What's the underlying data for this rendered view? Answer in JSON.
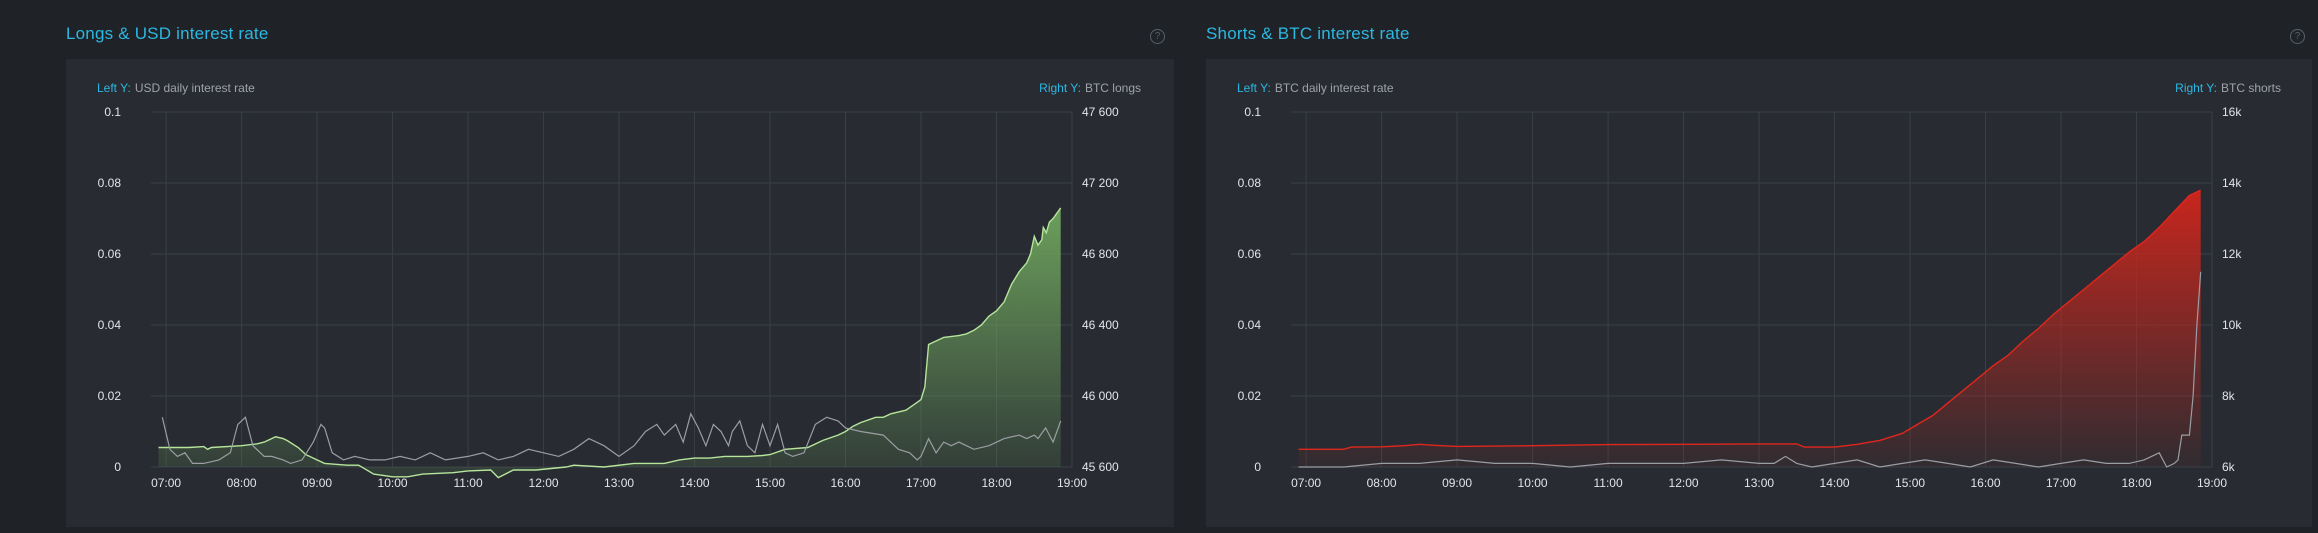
{
  "panels": {
    "longs": {
      "title": "Longs & USD interest rate",
      "help": "?"
    },
    "shorts": {
      "title": "Shorts & BTC interest rate",
      "help": "?"
    }
  },
  "colors": {
    "background": "#1f2328",
    "card": "#282c32",
    "accent": "#2db7e1",
    "longs_line": "#b6e59b",
    "longs_fill_top": "#6fa55e",
    "shorts_line": "#e0261c",
    "shorts_fill_top": "#c8261d",
    "rate_line": "#9a9ea4"
  },
  "chart_data": [
    {
      "type": "area",
      "title": "Longs & USD interest rate",
      "left_axis_caption": {
        "prefix": "Left Y:",
        "text": "USD daily interest rate"
      },
      "right_axis_caption": {
        "prefix": "Right Y:",
        "text": "BTC longs"
      },
      "xlim": [
        6.8,
        19.0
      ],
      "x_ticks": [
        7,
        8,
        9,
        10,
        11,
        12,
        13,
        14,
        15,
        16,
        17,
        18,
        19
      ],
      "x_tick_labels": [
        "07:00",
        "08:00",
        "09:00",
        "10:00",
        "11:00",
        "12:00",
        "13:00",
        "14:00",
        "15:00",
        "16:00",
        "17:00",
        "18:00",
        "19:00"
      ],
      "ylim_left": [
        0,
        0.1
      ],
      "left_ticks": [
        0,
        0.02,
        0.04,
        0.06,
        0.08,
        0.1
      ],
      "left_tick_labels": [
        "0",
        "0.02",
        "0.04",
        "0.06",
        "0.08",
        "0.1"
      ],
      "ylim_right": [
        45600,
        47600
      ],
      "right_ticks": [
        45600,
        46000,
        46400,
        46800,
        47200,
        47600
      ],
      "right_tick_labels": [
        "45 600",
        "46 000",
        "46 400",
        "46 800",
        "47 200",
        "47 600"
      ],
      "grid": true,
      "series": [
        {
          "name": "BTC longs",
          "axis": "right",
          "style": "area",
          "x": [
            6.9,
            7.3,
            7.5,
            7.55,
            7.6,
            8.0,
            8.2,
            8.3,
            8.45,
            8.55,
            8.6,
            8.75,
            8.85,
            8.95,
            9.1,
            9.4,
            9.55,
            9.75,
            10.0,
            10.2,
            10.4,
            10.8,
            11.0,
            11.3,
            11.4,
            11.6,
            11.9,
            12.3,
            12.4,
            12.8,
            13.2,
            13.4,
            13.6,
            13.8,
            14.0,
            14.2,
            14.4,
            14.7,
            14.9,
            15.0,
            15.2,
            15.5,
            15.7,
            15.9,
            16.0,
            16.1,
            16.2,
            16.4,
            16.5,
            16.6,
            16.8,
            16.9,
            17.0,
            17.05,
            17.1,
            17.3,
            17.5,
            17.6,
            17.7,
            17.8,
            17.9,
            18.0,
            18.1,
            18.15,
            18.2,
            18.3,
            18.4,
            18.45,
            18.5,
            18.55,
            18.6,
            18.62,
            18.66,
            18.7,
            18.75,
            18.8,
            18.85
          ],
          "values": [
            45710,
            45710,
            45715,
            45700,
            45710,
            45720,
            45730,
            45740,
            45770,
            45760,
            45750,
            45710,
            45670,
            45650,
            45620,
            45610,
            45610,
            45560,
            45545,
            45545,
            45560,
            45568,
            45578,
            45583,
            45540,
            45583,
            45583,
            45600,
            45610,
            45600,
            45620,
            45620,
            45620,
            45640,
            45650,
            45650,
            45660,
            45660,
            45665,
            45670,
            45700,
            45710,
            45750,
            45780,
            45800,
            45830,
            45850,
            45880,
            45880,
            45900,
            45920,
            45950,
            45980,
            46050,
            46290,
            46330,
            46340,
            46350,
            46370,
            46400,
            46450,
            46480,
            46530,
            46580,
            46630,
            46700,
            46750,
            46800,
            46900,
            46850,
            46880,
            46950,
            46920,
            46980,
            47000,
            47030,
            47060
          ]
        },
        {
          "name": "USD daily interest rate",
          "axis": "left",
          "style": "line",
          "x": [
            6.95,
            7.05,
            7.15,
            7.25,
            7.35,
            7.5,
            7.7,
            7.85,
            7.95,
            8.05,
            8.15,
            8.3,
            8.4,
            8.55,
            8.65,
            8.8,
            8.95,
            9.05,
            9.1,
            9.2,
            9.35,
            9.5,
            9.7,
            9.9,
            10.1,
            10.3,
            10.5,
            10.7,
            11.0,
            11.2,
            11.4,
            11.6,
            11.8,
            12.0,
            12.2,
            12.4,
            12.6,
            12.8,
            13.0,
            13.2,
            13.35,
            13.5,
            13.6,
            13.75,
            13.85,
            13.95,
            14.05,
            14.15,
            14.25,
            14.35,
            14.45,
            14.5,
            14.6,
            14.7,
            14.8,
            14.9,
            15.0,
            15.1,
            15.2,
            15.3,
            15.45,
            15.6,
            15.75,
            15.9,
            16.0,
            16.2,
            16.5,
            16.7,
            16.85,
            16.95,
            17.0,
            17.1,
            17.2,
            17.3,
            17.4,
            17.5,
            17.7,
            17.9,
            18.1,
            18.3,
            18.4,
            18.5,
            18.55,
            18.65,
            18.75,
            18.85
          ],
          "values": [
            0.014,
            0.005,
            0.003,
            0.004,
            0.001,
            0.001,
            0.002,
            0.004,
            0.012,
            0.014,
            0.006,
            0.003,
            0.003,
            0.002,
            0.001,
            0.002,
            0.007,
            0.012,
            0.011,
            0.004,
            0.002,
            0.003,
            0.002,
            0.002,
            0.003,
            0.002,
            0.004,
            0.002,
            0.003,
            0.004,
            0.002,
            0.003,
            0.005,
            0.004,
            0.003,
            0.005,
            0.008,
            0.006,
            0.003,
            0.006,
            0.01,
            0.012,
            0.009,
            0.012,
            0.007,
            0.015,
            0.011,
            0.006,
            0.012,
            0.01,
            0.006,
            0.01,
            0.013,
            0.006,
            0.004,
            0.012,
            0.006,
            0.012,
            0.004,
            0.003,
            0.004,
            0.012,
            0.014,
            0.013,
            0.011,
            0.01,
            0.009,
            0.005,
            0.004,
            0.002,
            0.003,
            0.008,
            0.004,
            0.007,
            0.006,
            0.007,
            0.005,
            0.006,
            0.008,
            0.009,
            0.008,
            0.009,
            0.008,
            0.011,
            0.007,
            0.013
          ]
        }
      ]
    },
    {
      "type": "area",
      "title": "Shorts & BTC interest rate",
      "left_axis_caption": {
        "prefix": "Left Y:",
        "text": "BTC daily interest rate"
      },
      "right_axis_caption": {
        "prefix": "Right Y:",
        "text": "BTC shorts"
      },
      "xlim": [
        6.8,
        19.0
      ],
      "x_ticks": [
        7,
        8,
        9,
        10,
        11,
        12,
        13,
        14,
        15,
        16,
        17,
        18,
        19
      ],
      "x_tick_labels": [
        "07:00",
        "08:00",
        "09:00",
        "10:00",
        "11:00",
        "12:00",
        "13:00",
        "14:00",
        "15:00",
        "16:00",
        "17:00",
        "18:00",
        "19:00"
      ],
      "ylim_left": [
        0,
        0.1
      ],
      "left_ticks": [
        0,
        0.02,
        0.04,
        0.06,
        0.08,
        0.1
      ],
      "left_tick_labels": [
        "0",
        "0.02",
        "0.04",
        "0.06",
        "0.08",
        "0.1"
      ],
      "ylim_right": [
        6000,
        16000
      ],
      "right_ticks": [
        6000,
        8000,
        10000,
        12000,
        14000,
        16000
      ],
      "right_tick_labels": [
        "6k",
        "8k",
        "10k",
        "12k",
        "14k",
        "16k"
      ],
      "grid": true,
      "series": [
        {
          "name": "BTC shorts",
          "axis": "right",
          "style": "area",
          "x": [
            6.9,
            7.5,
            7.6,
            8.0,
            8.3,
            8.5,
            8.7,
            9.0,
            10.0,
            11.0,
            12.0,
            13.0,
            13.5,
            13.6,
            14.0,
            14.3,
            14.6,
            14.9,
            15.1,
            15.3,
            15.5,
            15.7,
            15.9,
            16.1,
            16.3,
            16.5,
            16.7,
            16.9,
            17.1,
            17.3,
            17.5,
            17.7,
            17.9,
            18.1,
            18.3,
            18.5,
            18.7,
            18.85
          ],
          "values": [
            6500,
            6500,
            6560,
            6570,
            6600,
            6640,
            6610,
            6580,
            6600,
            6630,
            6640,
            6650,
            6650,
            6560,
            6560,
            6640,
            6750,
            6950,
            7200,
            7450,
            7800,
            8150,
            8500,
            8850,
            9150,
            9550,
            9900,
            10300,
            10650,
            11000,
            11350,
            11700,
            12050,
            12350,
            12750,
            13200,
            13650,
            13800
          ]
        },
        {
          "name": "BTC daily interest rate",
          "axis": "left",
          "style": "line",
          "x": [
            6.9,
            7.5,
            8.0,
            8.5,
            9.0,
            9.5,
            10.0,
            10.5,
            11.0,
            11.5,
            12.0,
            12.5,
            13.0,
            13.2,
            13.35,
            13.5,
            13.7,
            14.0,
            14.3,
            14.6,
            14.9,
            15.2,
            15.5,
            15.8,
            16.1,
            16.4,
            16.7,
            17.0,
            17.3,
            17.6,
            17.9,
            18.1,
            18.3,
            18.4,
            18.5,
            18.55,
            18.6,
            18.7,
            18.75,
            18.8,
            18.85
          ],
          "values": [
            0.0,
            0.0,
            0.001,
            0.001,
            0.002,
            0.001,
            0.001,
            0.0,
            0.001,
            0.001,
            0.001,
            0.002,
            0.001,
            0.001,
            0.003,
            0.001,
            0.0,
            0.001,
            0.002,
            0.0,
            0.001,
            0.002,
            0.001,
            0.0,
            0.002,
            0.001,
            0.0,
            0.001,
            0.002,
            0.001,
            0.001,
            0.002,
            0.004,
            0.0,
            0.001,
            0.002,
            0.009,
            0.009,
            0.02,
            0.04,
            0.055
          ]
        }
      ]
    }
  ]
}
